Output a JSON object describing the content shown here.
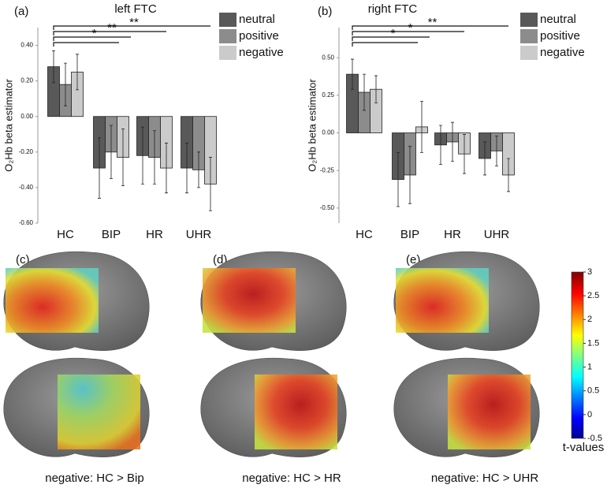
{
  "chart_data": [
    {
      "type": "bar",
      "panel": "(a)",
      "title": "left FTC",
      "y_label": "O₂Hb beta estimator",
      "categories": [
        "HC",
        "BIP",
        "HR",
        "UHR"
      ],
      "series": [
        {
          "name": "neutral",
          "color": "#595959",
          "values": [
            0.28,
            -0.29,
            -0.22,
            -0.29
          ],
          "errors": [
            0.09,
            0.17,
            0.16,
            0.14
          ]
        },
        {
          "name": "positive",
          "color": "#8c8c8c",
          "values": [
            0.18,
            -0.2,
            -0.23,
            -0.3
          ],
          "errors": [
            0.12,
            0.15,
            0.15,
            0.1
          ]
        },
        {
          "name": "negative",
          "color": "#cbcbcb",
          "values": [
            0.25,
            -0.23,
            -0.29,
            -0.38
          ],
          "errors": [
            0.1,
            0.16,
            0.14,
            0.15
          ]
        }
      ],
      "ylim": [
        -0.6,
        0.5
      ],
      "yticks": [
        {
          "value": 0.4,
          "label": "0.40"
        },
        {
          "value": 0.2,
          "label": "0.20"
        },
        {
          "value": 0,
          "label": "0.00"
        },
        {
          "value": -0.2,
          "label": "-0.20"
        },
        {
          "value": -0.4,
          "label": "-0.40"
        },
        {
          "value": -0.6,
          "label": "-0.60"
        }
      ],
      "significance": [
        "**",
        "**",
        "*"
      ]
    },
    {
      "type": "bar",
      "panel": "(b)",
      "title": "right FTC",
      "y_label": "O₂Hb beta estimator",
      "categories": [
        "HC",
        "BIP",
        "HR",
        "UHR"
      ],
      "series": [
        {
          "name": "neutral",
          "color": "#595959",
          "values": [
            0.39,
            -0.31,
            -0.08,
            -0.17
          ],
          "errors": [
            0.1,
            0.18,
            0.13,
            0.11
          ]
        },
        {
          "name": "positive",
          "color": "#8c8c8c",
          "values": [
            0.27,
            -0.28,
            -0.06,
            -0.12
          ],
          "errors": [
            0.12,
            0.19,
            0.13,
            0.1
          ]
        },
        {
          "name": "negative",
          "color": "#cbcbcb",
          "values": [
            0.29,
            0.04,
            -0.14,
            -0.28
          ],
          "errors": [
            0.09,
            0.17,
            0.13,
            0.11
          ]
        }
      ],
      "ylim": [
        -0.6,
        0.7
      ],
      "yticks": [
        {
          "value": 0.5,
          "label": "0.50"
        },
        {
          "value": 0.25,
          "label": "0.25"
        },
        {
          "value": 0,
          "label": "0.00"
        },
        {
          "value": -0.25,
          "label": "-0.25"
        },
        {
          "value": -0.5,
          "label": "-0.50"
        }
      ],
      "significance": [
        "**",
        "*",
        "*"
      ]
    }
  ],
  "brain_maps": [
    {
      "panel": "(c)",
      "caption": "negative: HC > Bip"
    },
    {
      "panel": "(d)",
      "caption": "negative: HC > HR"
    },
    {
      "panel": "(e)",
      "caption": "negative: HC > UHR"
    }
  ],
  "colorbar": {
    "label": "t-values",
    "lim": [
      -0.5,
      3
    ],
    "ticks": [
      3,
      2.5,
      2,
      1.5,
      1,
      0.5,
      0,
      -0.5
    ]
  }
}
